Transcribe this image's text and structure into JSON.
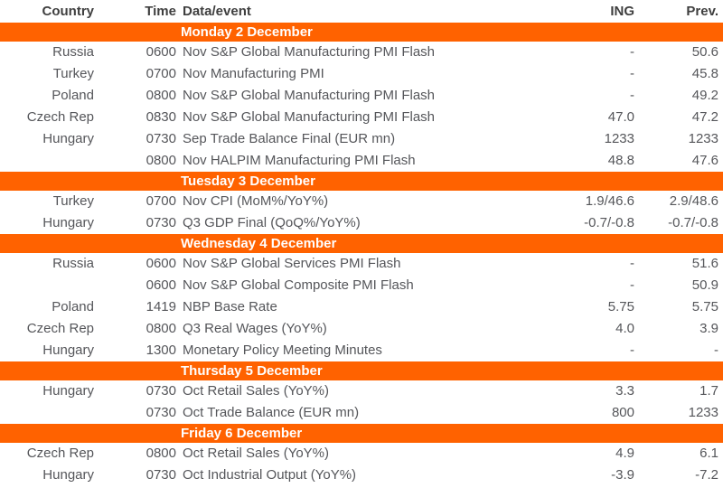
{
  "chart_data": {
    "type": "table",
    "columns": [
      "Country",
      "Time",
      "Data/event",
      "ING",
      "Prev."
    ],
    "sections": [
      {
        "day": "Monday 2 December",
        "rows": [
          {
            "country": "Russia",
            "time": "0600",
            "event": "Nov S&P Global Manufacturing PMI Flash",
            "ing": "-",
            "prev": "50.6"
          },
          {
            "country": "Turkey",
            "time": "0700",
            "event": "Nov Manufacturing PMI",
            "ing": "-",
            "prev": "45.8"
          },
          {
            "country": "Poland",
            "time": "0800",
            "event": "Nov S&P Global Manufacturing PMI Flash",
            "ing": "-",
            "prev": "49.2"
          },
          {
            "country": "Czech Rep",
            "time": "0830",
            "event": "Nov S&P Global Manufacturing PMI Flash",
            "ing": "47.0",
            "prev": "47.2"
          },
          {
            "country": "Hungary",
            "time": "0730",
            "event": "Sep Trade Balance Final (EUR mn)",
            "ing": "1233",
            "prev": "1233"
          },
          {
            "country": "",
            "time": "0800",
            "event": "Nov HALPIM Manufacturing PMI Flash",
            "ing": "48.8",
            "prev": "47.6"
          }
        ]
      },
      {
        "day": "Tuesday 3 December",
        "rows": [
          {
            "country": "Turkey",
            "time": "0700",
            "event": "Nov CPI (MoM%/YoY%)",
            "ing": "1.9/46.6",
            "prev": "2.9/48.6"
          },
          {
            "country": "Hungary",
            "time": "0730",
            "event": "Q3 GDP Final (QoQ%/YoY%)",
            "ing": "-0.7/-0.8",
            "prev": "-0.7/-0.8"
          }
        ]
      },
      {
        "day": "Wednesday 4 December",
        "rows": [
          {
            "country": "Russia",
            "time": "0600",
            "event": "Nov S&P Global Services PMI Flash",
            "ing": "-",
            "prev": "51.6"
          },
          {
            "country": "",
            "time": "0600",
            "event": "Nov S&P Global Composite PMI Flash",
            "ing": "-",
            "prev": "50.9"
          },
          {
            "country": "Poland",
            "time": "1419",
            "event": "NBP Base Rate",
            "ing": "5.75",
            "prev": "5.75"
          },
          {
            "country": "Czech Rep",
            "time": "0800",
            "event": "Q3 Real Wages (YoY%)",
            "ing": "4.0",
            "prev": "3.9"
          },
          {
            "country": "Hungary",
            "time": "1300",
            "event": "Monetary Policy Meeting Minutes",
            "ing": "-",
            "prev": "-"
          }
        ]
      },
      {
        "day": "Thursday 5 December",
        "rows": [
          {
            "country": "Hungary",
            "time": "0730",
            "event": "Oct Retail Sales (YoY%)",
            "ing": "3.3",
            "prev": "1.7"
          },
          {
            "country": "",
            "time": "0730",
            "event": "Oct Trade Balance (EUR mn)",
            "ing": "800",
            "prev": "1233"
          }
        ]
      },
      {
        "day": "Friday 6 December",
        "rows": [
          {
            "country": "Czech Rep",
            "time": "0800",
            "event": "Oct Retail Sales (YoY%)",
            "ing": "4.9",
            "prev": "6.1"
          },
          {
            "country": "Hungary",
            "time": "0730",
            "event": "Oct Industrial Output (YoY%)",
            "ing": "-3.9",
            "prev": "-7.2"
          }
        ]
      }
    ]
  },
  "colors": {
    "accent_orange": "#FF6200",
    "band_text": "#FFFFFF",
    "header_text": "#3F3F3F",
    "body_text": "#55565A"
  }
}
